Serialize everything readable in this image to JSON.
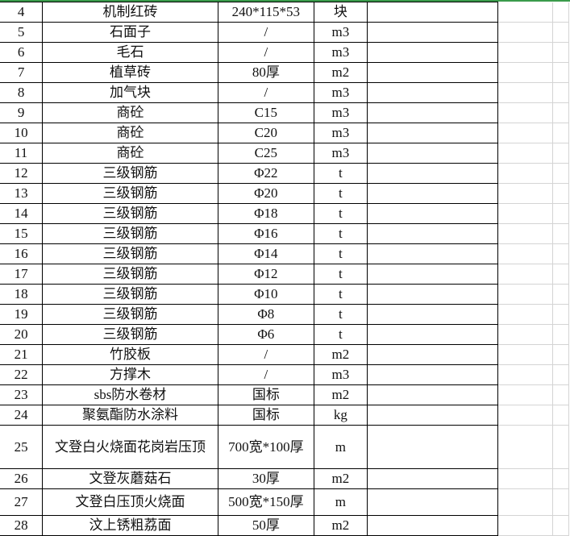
{
  "colors": {
    "frozen_line": "#3a9b4b",
    "grid": "#d4d4d4"
  },
  "rows": [
    {
      "no": "4",
      "name": "机制红砖",
      "spec": "240*115*53",
      "unit": "块"
    },
    {
      "no": "5",
      "name": "石面子",
      "spec": "/",
      "unit": "m3"
    },
    {
      "no": "6",
      "name": "毛石",
      "spec": "/",
      "unit": "m3"
    },
    {
      "no": "7",
      "name": "植草砖",
      "spec": "80厚",
      "unit": "m2"
    },
    {
      "no": "8",
      "name": "加气块",
      "spec": "/",
      "unit": "m3"
    },
    {
      "no": "9",
      "name": "商砼",
      "spec": "C15",
      "unit": "m3"
    },
    {
      "no": "10",
      "name": "商砼",
      "spec": "C20",
      "unit": "m3"
    },
    {
      "no": "11",
      "name": "商砼",
      "spec": "C25",
      "unit": "m3"
    },
    {
      "no": "12",
      "name": "三级钢筋",
      "spec": "Φ22",
      "unit": "t"
    },
    {
      "no": "13",
      "name": "三级钢筋",
      "spec": "Φ20",
      "unit": "t"
    },
    {
      "no": "14",
      "name": "三级钢筋",
      "spec": "Φ18",
      "unit": "t"
    },
    {
      "no": "15",
      "name": "三级钢筋",
      "spec": "Φ16",
      "unit": "t"
    },
    {
      "no": "16",
      "name": "三级钢筋",
      "spec": "Φ14",
      "unit": "t"
    },
    {
      "no": "17",
      "name": "三级钢筋",
      "spec": "Φ12",
      "unit": "t"
    },
    {
      "no": "18",
      "name": "三级钢筋",
      "spec": "Φ10",
      "unit": "t"
    },
    {
      "no": "19",
      "name": "三级钢筋",
      "spec": "Φ8",
      "unit": "t"
    },
    {
      "no": "20",
      "name": "三级钢筋",
      "spec": "Φ6",
      "unit": "t"
    },
    {
      "no": "21",
      "name": "竹胶板",
      "spec": "/",
      "unit": "m2"
    },
    {
      "no": "22",
      "name": "方撑木",
      "spec": "/",
      "unit": "m3"
    },
    {
      "no": "23",
      "name": "sbs防水卷材",
      "spec": "国标",
      "unit": "m2"
    },
    {
      "no": "24",
      "name": "聚氨酯防水涂料",
      "spec": "国标",
      "unit": "kg"
    },
    {
      "no": "25",
      "name": "文登白火烧面花岗岩压顶",
      "spec": "700宽*100厚",
      "unit": "m"
    },
    {
      "no": "26",
      "name": "文登灰蘑菇石",
      "spec": "30厚",
      "unit": "m2"
    },
    {
      "no": "27",
      "name": "文登白压顶火烧面",
      "spec": "500宽*150厚",
      "unit": "m"
    },
    {
      "no": "28",
      "name": "汶上锈粗荔面",
      "spec": "50厚",
      "unit": "m2"
    }
  ]
}
